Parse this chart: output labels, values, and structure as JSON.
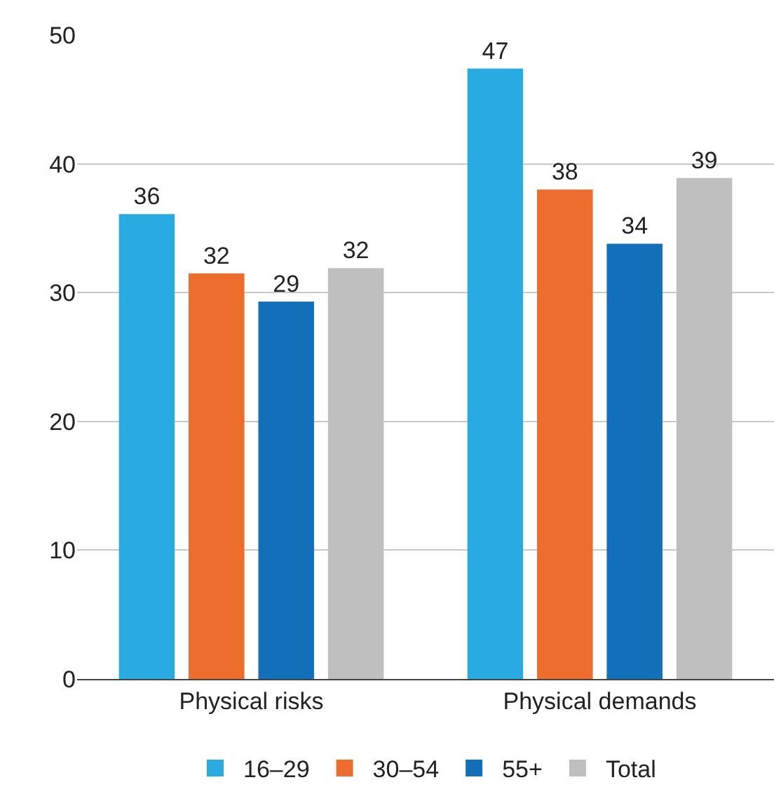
{
  "chart_data": {
    "type": "bar",
    "categories": [
      "Physical risks",
      "Physical demands"
    ],
    "series": [
      {
        "name": "16–29",
        "color": "#29abe2",
        "values": [
          36.1,
          47.4
        ],
        "value_labels": [
          "36",
          "47"
        ]
      },
      {
        "name": "30–54",
        "color": "#ed6d2f",
        "values": [
          31.5,
          38.0
        ],
        "value_labels": [
          "32",
          "38"
        ]
      },
      {
        "name": "55+",
        "color": "#1170b8",
        "values": [
          29.3,
          33.8
        ],
        "value_labels": [
          "29",
          "34"
        ]
      },
      {
        "name": "Total",
        "color": "#bfbfbf",
        "values": [
          31.9,
          38.9
        ],
        "value_labels": [
          "32",
          "39"
        ]
      }
    ],
    "ylim": [
      0,
      50
    ],
    "yticks": [
      0,
      10,
      20,
      30,
      40,
      50
    ],
    "grid": "y",
    "legend": "bottom"
  }
}
